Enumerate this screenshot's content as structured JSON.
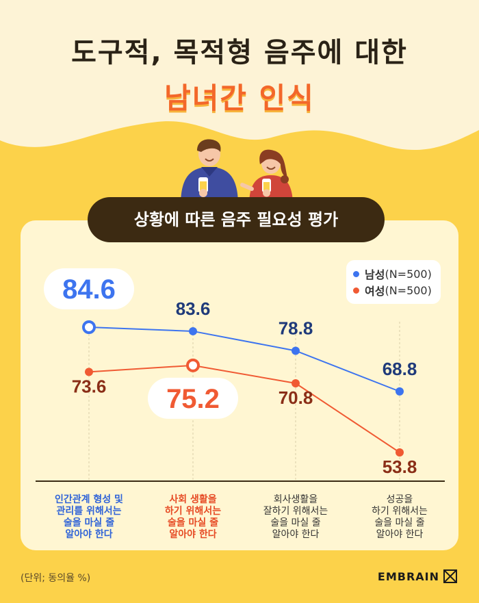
{
  "header": {
    "title_line1": "도구적, 목적형 음주에 대한",
    "title_line2": "남녀간 인식",
    "subtitle": "상황에 따른 음주 필요성 평가"
  },
  "legend": {
    "items": [
      {
        "name": "남성",
        "suffix": "(N=500)",
        "color": "#3d74ef"
      },
      {
        "name": "여성",
        "suffix": "(N=500)",
        "color": "#f05a33"
      }
    ]
  },
  "chart_data": {
    "type": "line",
    "categories": [
      [
        "인간관계 형성 및",
        "관리를 위해서는",
        "술을 마실 줄",
        "알아야 한다"
      ],
      [
        "사회 생활을",
        "하기 위해서는",
        "술을 마실 줄",
        "알아야 한다"
      ],
      [
        "회사생활을",
        "잘하기 위해서는",
        "술을 마실 줄",
        "알아야 한다"
      ],
      [
        "성공을",
        "하기 위해서는",
        "술을 마실 줄",
        "알아야 한다"
      ]
    ],
    "category_colors": [
      "#2f63d8",
      "#e64a24",
      "#333333",
      "#333333"
    ],
    "series": [
      {
        "name": "남성(N=500)",
        "values": [
          84.6,
          83.6,
          78.8,
          68.8
        ],
        "color": "#3d74ef",
        "label_color": "#1f3a7a",
        "highlight_index": 0
      },
      {
        "name": "여성(N=500)",
        "values": [
          73.6,
          75.2,
          70.8,
          53.8
        ],
        "color": "#f05a33",
        "label_color": "#8a2e17",
        "highlight_index": 1
      }
    ],
    "ylim": [
      45,
      95
    ],
    "grid": false,
    "legend_position": "top-right"
  },
  "footer": {
    "note": "(단위; 동의율 %)",
    "brand": "EMBRAIN"
  }
}
